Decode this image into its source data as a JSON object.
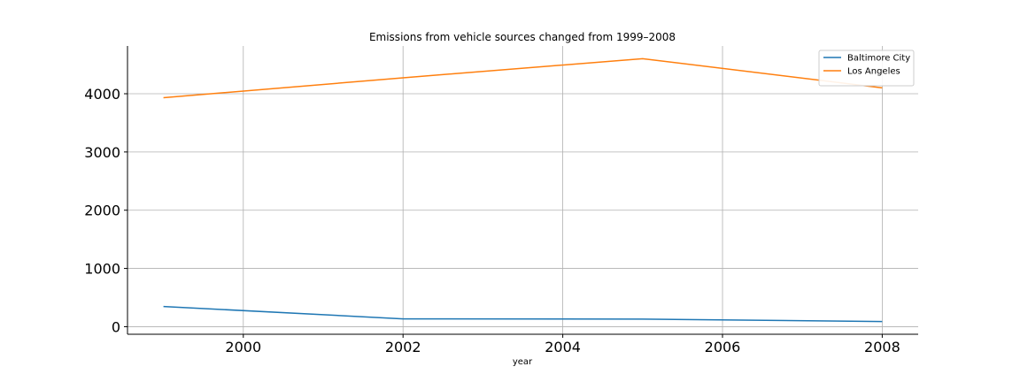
{
  "chart_data": {
    "type": "line",
    "title": "Emissions from vehicle sources changed from 1999–2008",
    "xlabel": "year",
    "ylabel": "",
    "x": [
      1999,
      2002,
      2005,
      2008
    ],
    "xlim": [
      1998.55,
      2008.45
    ],
    "ylim": [
      -130,
      4820
    ],
    "xticks": [
      2000,
      2002,
      2004,
      2006,
      2008
    ],
    "yticks": [
      0,
      1000,
      2000,
      3000,
      4000
    ],
    "grid": true,
    "legend_position": "top-right",
    "series": [
      {
        "name": "Baltimore City",
        "color": "#1f77b4",
        "values": [
          346.82,
          134.31,
          130.43,
          88.28
        ]
      },
      {
        "name": "Los Angeles",
        "color": "#ff7f0e",
        "values": [
          3931.12,
          4274.03,
          4601.41,
          4101.32
        ]
      }
    ]
  }
}
